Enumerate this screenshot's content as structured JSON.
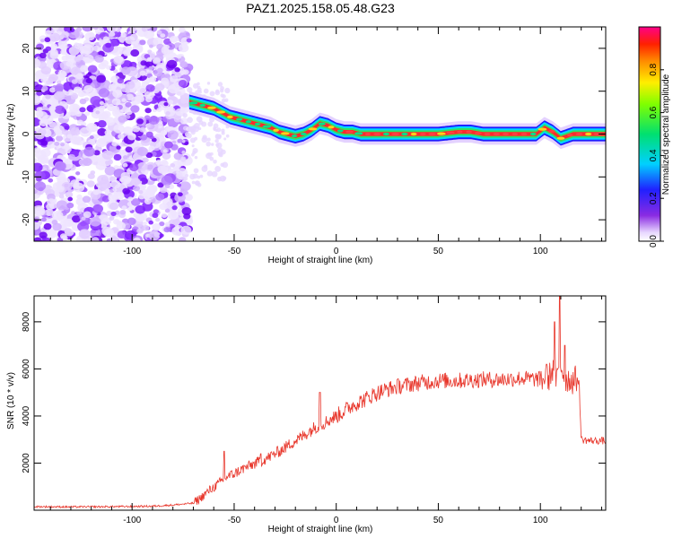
{
  "title": "PAZ1.2025.158.05.48.G23",
  "chart_data": [
    {
      "type": "heatmap",
      "xlabel": "Height of straight line (km)",
      "ylabel": "Frequency (Hz)",
      "xlim": [
        -148,
        132
      ],
      "ylim": [
        -25,
        25
      ],
      "xticks": [
        -100,
        -50,
        0,
        50,
        100
      ],
      "yticks": [
        -20,
        -10,
        0,
        10,
        20
      ],
      "noise_region": {
        "x_from": -148,
        "x_to": -72,
        "note_levels": "0.05-0.7"
      },
      "ridge": {
        "x": [
          -72,
          -68,
          -64,
          -60,
          -56,
          -52,
          -48,
          -44,
          -40,
          -36,
          -32,
          -28,
          -24,
          -20,
          -16,
          -12,
          -8,
          -4,
          0,
          4,
          8,
          12,
          20,
          30,
          40,
          50,
          60,
          66,
          72,
          80,
          90,
          98,
          102,
          106,
          110,
          116,
          124,
          132
        ],
        "y": [
          7.5,
          7.0,
          6.5,
          6.0,
          5.0,
          4.0,
          3.5,
          3.0,
          2.5,
          2.0,
          1.5,
          0.5,
          0.0,
          -0.5,
          0.0,
          1.0,
          2.5,
          2.0,
          1.0,
          0.5,
          0.5,
          0.0,
          0.0,
          0.0,
          0.0,
          0.0,
          0.5,
          0.5,
          0.0,
          0.0,
          0.0,
          0.0,
          1.5,
          0.5,
          -1.0,
          0.0,
          0.0,
          0.0
        ]
      },
      "colorbar": {
        "label": "Normalized spectral amplitude",
        "ticks": [
          0.0,
          0.2,
          0.4,
          0.6,
          0.8
        ],
        "range": [
          0,
          1
        ],
        "colormap": "rainbow"
      }
    },
    {
      "type": "line",
      "xlabel": "Height of straight line (km)",
      "ylabel": "SNR (10 * v/v)",
      "xlim": [
        -148,
        132
      ],
      "ylim": [
        0,
        9100
      ],
      "xticks": [
        -100,
        -50,
        0,
        50,
        100
      ],
      "yticks": [
        2000,
        4000,
        6000,
        8000
      ],
      "color": "#e8372c",
      "series": [
        {
          "x": [
            -148,
            -130,
            -110,
            -90,
            -80,
            -70,
            -66,
            -62,
            -58,
            -54,
            -50,
            -46,
            -42,
            -38,
            -34,
            -30,
            -26,
            -22,
            -18,
            -14,
            -10,
            -6,
            -2,
            2,
            6,
            10,
            14,
            18,
            22,
            26,
            30,
            40,
            50,
            60,
            70,
            80,
            90,
            100,
            104,
            106,
            108,
            110,
            112,
            116,
            118,
            119,
            120,
            124,
            128,
            132
          ],
          "y": [
            150,
            140,
            150,
            170,
            220,
            300,
            550,
            850,
            1100,
            1400,
            1550,
            1750,
            1900,
            2050,
            2200,
            2400,
            2600,
            2850,
            3050,
            3300,
            3550,
            3700,
            3900,
            4100,
            4350,
            4550,
            4700,
            4900,
            5050,
            5150,
            5250,
            5400,
            5500,
            5500,
            5550,
            5550,
            5600,
            5550,
            5600,
            6000,
            5500,
            6200,
            5600,
            5500,
            5600,
            5400,
            3000,
            2950,
            2950,
            2950
          ]
        }
      ],
      "spikes": [
        {
          "x": -55,
          "y": 2500
        },
        {
          "x": -37,
          "y": 2400
        },
        {
          "x": -8,
          "y": 5000
        },
        {
          "x": 103,
          "y": 6200
        },
        {
          "x": 107,
          "y": 8000
        },
        {
          "x": 109.5,
          "y": 9100
        },
        {
          "x": 112,
          "y": 7000
        }
      ]
    }
  ]
}
